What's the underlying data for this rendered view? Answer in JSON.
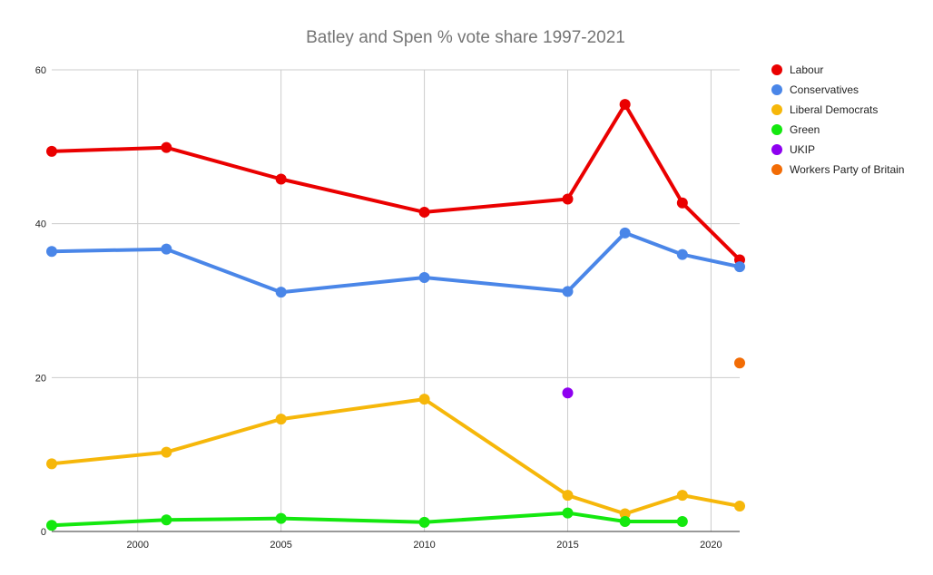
{
  "chart_data": {
    "type": "line",
    "title": "Batley and Spen % vote share 1997-2021",
    "xlabel": "",
    "ylabel": "",
    "xlim": [
      1997,
      2021
    ],
    "ylim": [
      0,
      60
    ],
    "x_ticks": [
      2000,
      2005,
      2010,
      2015,
      2020
    ],
    "y_ticks": [
      0,
      20,
      40,
      60
    ],
    "grid": true,
    "legend_position": "right",
    "series": [
      {
        "name": "Labour",
        "color": "#ea0000",
        "points": [
          [
            1997,
            49.4
          ],
          [
            2001,
            49.9
          ],
          [
            2005,
            45.8
          ],
          [
            2010,
            41.5
          ],
          [
            2015,
            43.2
          ],
          [
            2017,
            55.5
          ],
          [
            2019,
            42.7
          ],
          [
            2021,
            35.3
          ]
        ]
      },
      {
        "name": "Conservatives",
        "color": "#4a86e8",
        "points": [
          [
            1997,
            36.4
          ],
          [
            2001,
            36.7
          ],
          [
            2005,
            31.1
          ],
          [
            2010,
            33.0
          ],
          [
            2015,
            31.2
          ],
          [
            2017,
            38.8
          ],
          [
            2019,
            36.0
          ],
          [
            2021,
            34.4
          ]
        ]
      },
      {
        "name": "Liberal Democrats",
        "color": "#f6b70a",
        "points": [
          [
            1997,
            8.8
          ],
          [
            2001,
            10.3
          ],
          [
            2005,
            14.6
          ],
          [
            2010,
            17.2
          ],
          [
            2015,
            4.7
          ],
          [
            2017,
            2.3
          ],
          [
            2019,
            4.7
          ],
          [
            2021,
            3.3
          ]
        ]
      },
      {
        "name": "Green",
        "color": "#14e80f",
        "points": [
          [
            1997,
            0.8
          ],
          [
            2001,
            1.5
          ],
          [
            2005,
            1.7
          ],
          [
            2010,
            1.2
          ],
          [
            2015,
            2.4
          ],
          [
            2017,
            1.3
          ],
          [
            2019,
            1.3
          ]
        ]
      },
      {
        "name": "UKIP",
        "color": "#8e00f0",
        "points": [
          [
            2015,
            18.0
          ]
        ]
      },
      {
        "name": "Workers Party of Britain",
        "color": "#f26c05",
        "points": [
          [
            2021,
            21.9
          ]
        ]
      }
    ]
  }
}
